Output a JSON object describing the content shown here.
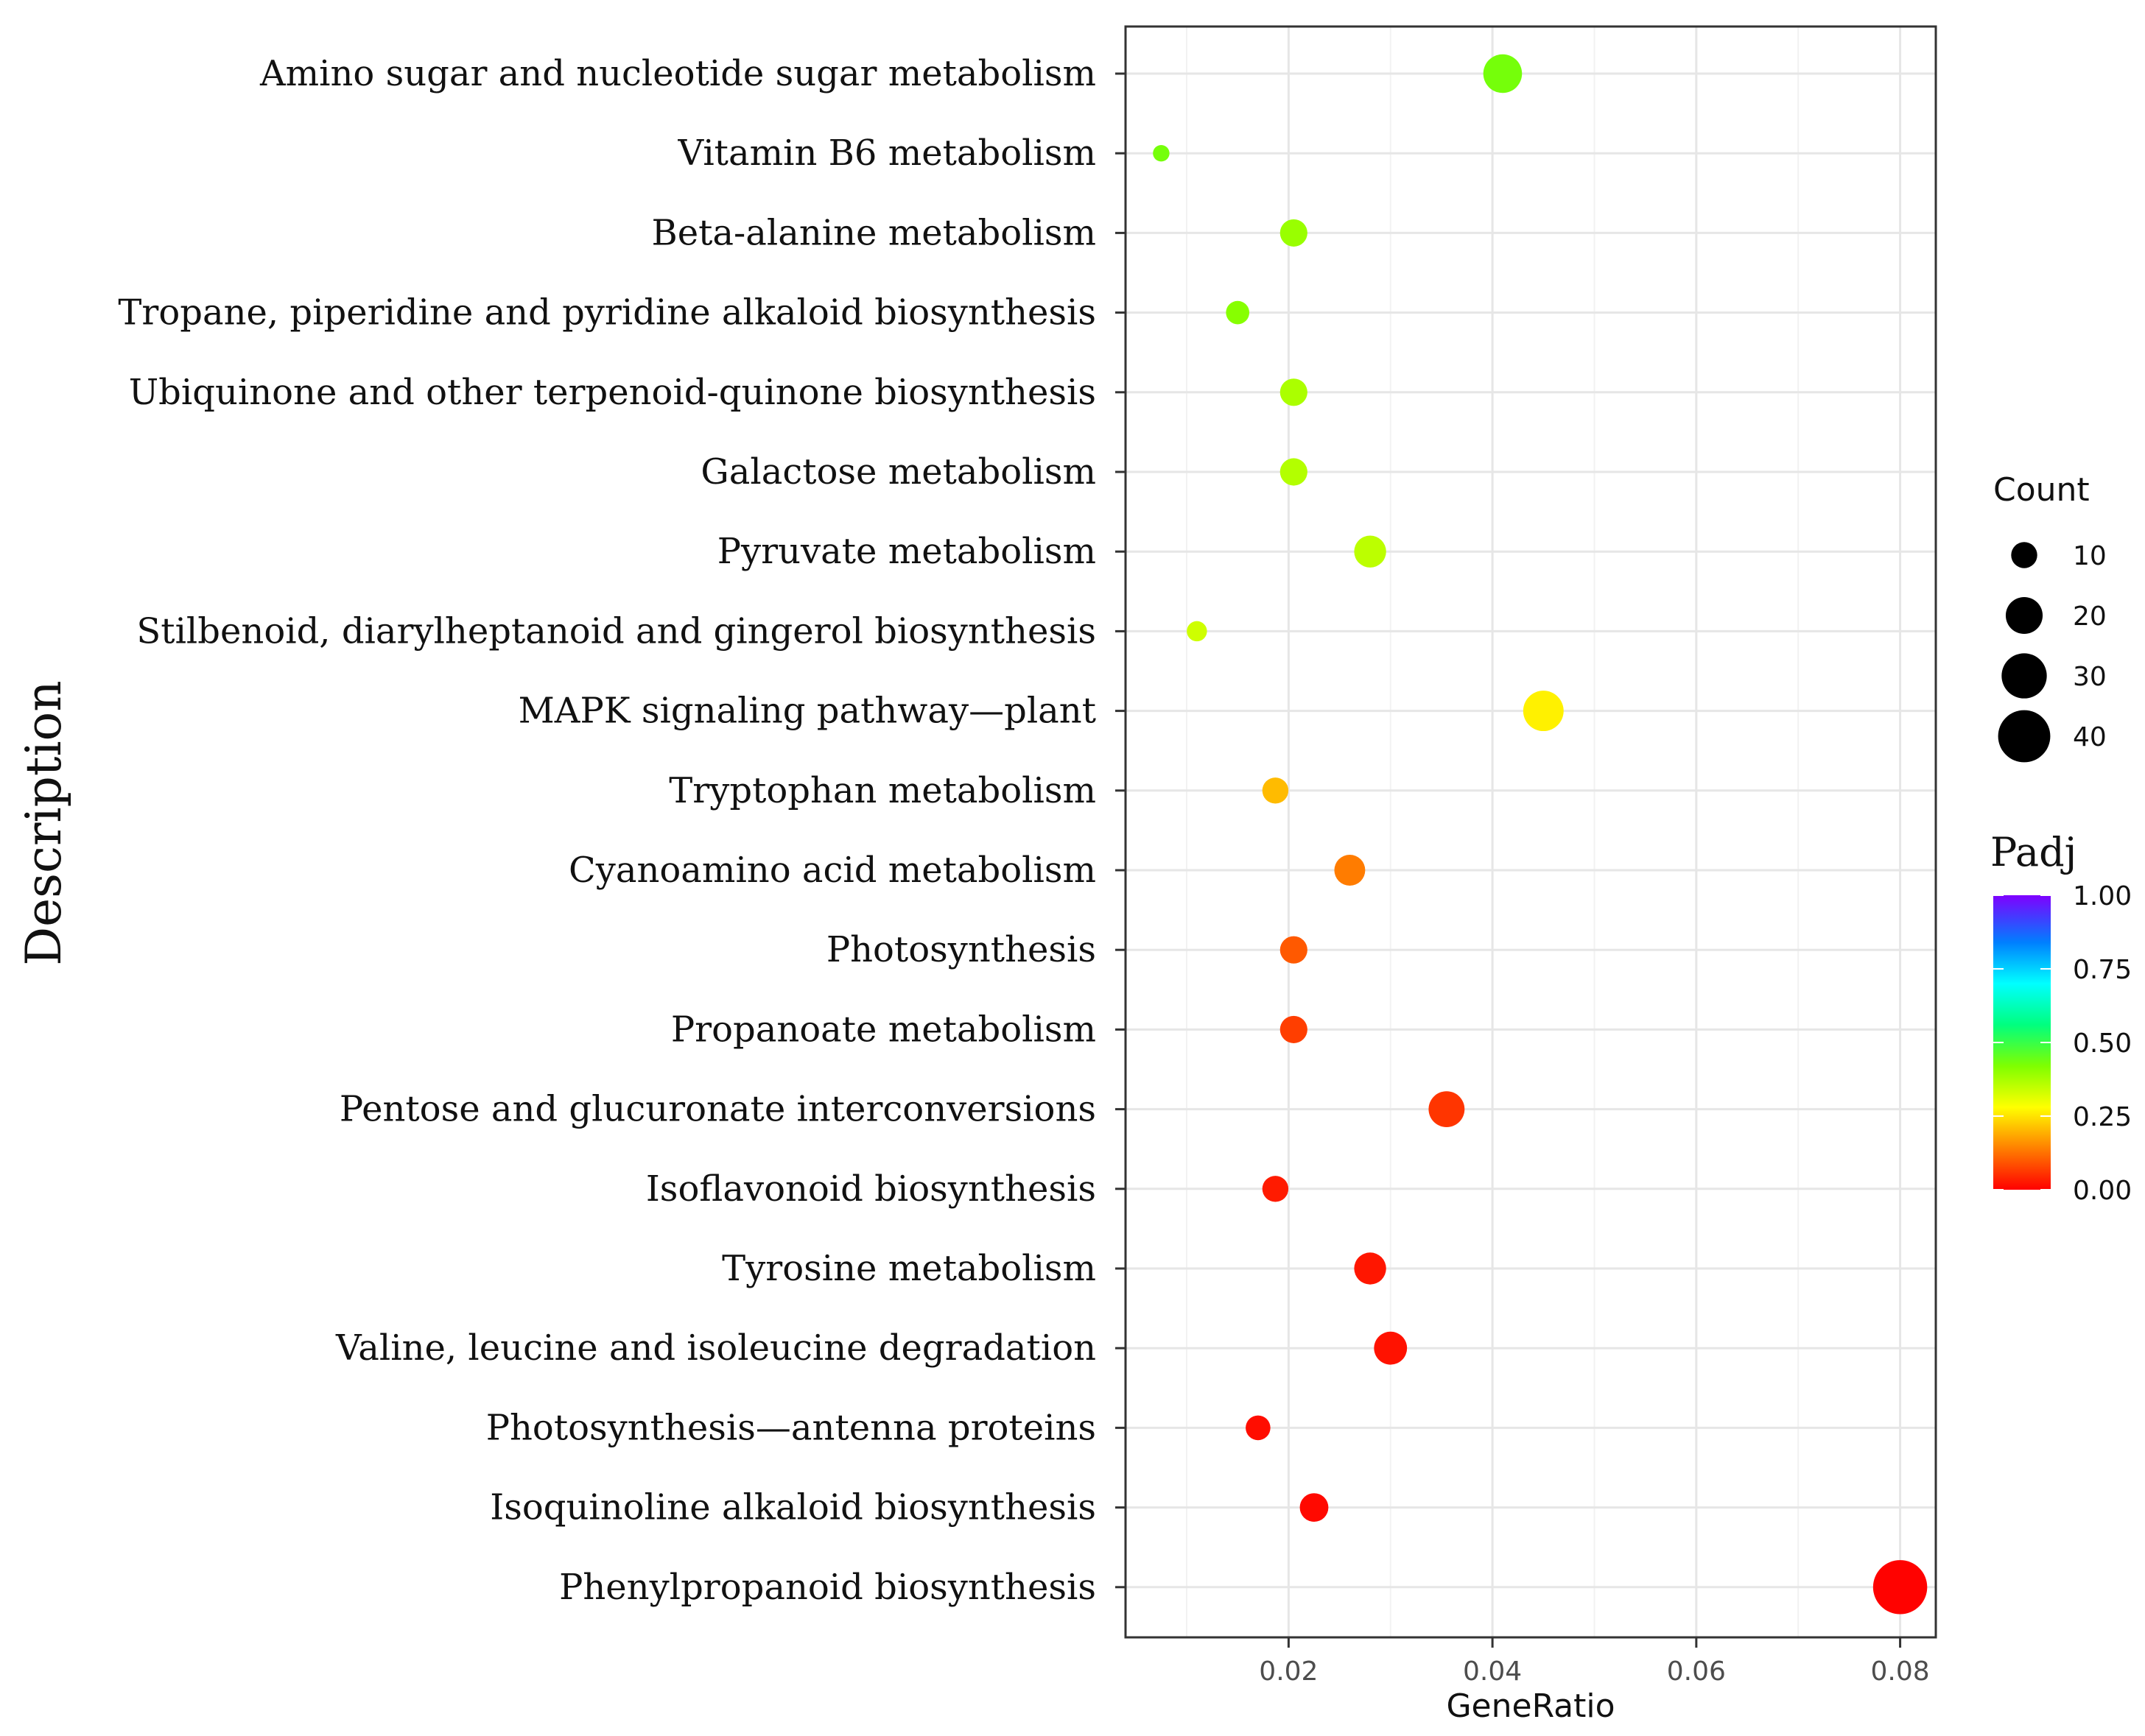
{
  "chart_data": {
    "type": "scatter",
    "title": "",
    "xlabel": "GeneRatio",
    "ylabel": "Description",
    "xlim": [
      0.004,
      0.0835
    ],
    "xticks": [
      0.02,
      0.04,
      0.06,
      0.08
    ],
    "xtick_labels": [
      "0.02",
      "0.04",
      "0.06",
      "0.08"
    ],
    "grid": true,
    "categories": [
      "Amino sugar and nucleotide sugar metabolism",
      "Vitamin B6 metabolism",
      "Beta-alanine metabolism",
      "Tropane, piperidine and pyridine alkaloid biosynthesis",
      "Ubiquinone and other terpenoid-quinone biosynthesis",
      "Galactose metabolism",
      "Pyruvate metabolism",
      "Stilbenoid, diarylheptanoid and gingerol biosynthesis",
      "MAPK signaling pathway—plant",
      "Tryptophan metabolism",
      "Cyanoamino acid metabolism",
      "Photosynthesis",
      "Propanoate metabolism",
      "Pentose and glucuronate interconversions",
      "Isoflavonoid biosynthesis",
      "Tyrosine metabolism",
      "Valine, leucine and isoleucine degradation",
      "Photosynthesis—antenna proteins",
      "Isoquinoline alkaloid biosynthesis",
      "Phenylpropanoid biosynthesis"
    ],
    "points": [
      {
        "x": 0.041,
        "count": 22,
        "padj": 0.44
      },
      {
        "x": 0.0075,
        "count": 4,
        "padj": 0.44
      },
      {
        "x": 0.0205,
        "count": 11,
        "padj": 0.4
      },
      {
        "x": 0.015,
        "count": 8,
        "padj": 0.42
      },
      {
        "x": 0.0205,
        "count": 11,
        "padj": 0.38
      },
      {
        "x": 0.0205,
        "count": 11,
        "padj": 0.37
      },
      {
        "x": 0.028,
        "count": 15,
        "padj": 0.36
      },
      {
        "x": 0.011,
        "count": 6,
        "padj": 0.34
      },
      {
        "x": 0.045,
        "count": 24,
        "padj": 0.27
      },
      {
        "x": 0.0187,
        "count": 10,
        "padj": 0.21
      },
      {
        "x": 0.026,
        "count": 14,
        "padj": 0.14
      },
      {
        "x": 0.0205,
        "count": 11,
        "padj": 0.1
      },
      {
        "x": 0.0205,
        "count": 11,
        "padj": 0.07
      },
      {
        "x": 0.0355,
        "count": 19,
        "padj": 0.06
      },
      {
        "x": 0.0187,
        "count": 10,
        "padj": 0.03
      },
      {
        "x": 0.028,
        "count": 15,
        "padj": 0.025
      },
      {
        "x": 0.03,
        "count": 16,
        "padj": 0.02
      },
      {
        "x": 0.017,
        "count": 9,
        "padj": 0.015
      },
      {
        "x": 0.0225,
        "count": 12,
        "padj": 0.01
      },
      {
        "x": 0.08,
        "count": 43,
        "padj": 0.002
      }
    ],
    "size_legend": {
      "title": "Count",
      "values": [
        10,
        20,
        30,
        40
      ],
      "labels": [
        "10",
        "20",
        "30",
        "40"
      ]
    },
    "color_legend": {
      "title": "Padj",
      "range": [
        0,
        1
      ],
      "ticks": [
        "1.00",
        "0.75",
        "0.50",
        "0.25",
        "0.00"
      ],
      "colors": [
        "#ff0000",
        "#ff7f00",
        "#ffff00",
        "#7fff00",
        "#00ff7f",
        "#00ffff",
        "#007fff",
        "#7f00ff"
      ]
    }
  }
}
